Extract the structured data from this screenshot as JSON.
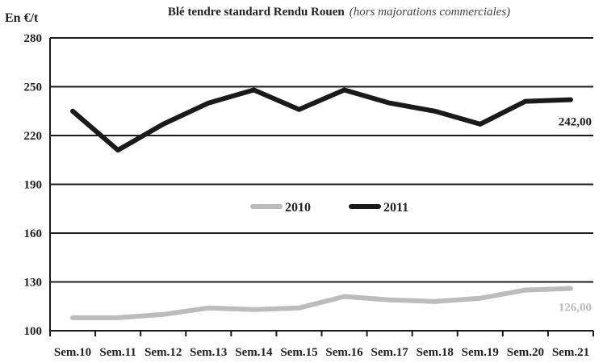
{
  "chart_data": {
    "type": "line",
    "title": "Blé tendre standard Rendu Rouen",
    "subtitle": "(hors majorations commerciales)",
    "ylabel": "En €/t",
    "ylim": [
      100,
      280
    ],
    "yticks": [
      100,
      130,
      160,
      190,
      220,
      250,
      280
    ],
    "grid": true,
    "legend_position": "center",
    "categories": [
      "Sem.10",
      "Sem.11",
      "Sem.12",
      "Sem.13",
      "Sem.14",
      "Sem.15",
      "Sem.16",
      "Sem.17",
      "Sem.18",
      "Sem.19",
      "Sem.20",
      "Sem.21"
    ],
    "series": [
      {
        "name": "2010",
        "color": "#bcbcbc",
        "values": [
          108,
          108,
          110,
          114,
          113,
          114,
          121,
          119,
          118,
          120,
          125,
          126
        ],
        "end_label": "126,00"
      },
      {
        "name": "2011",
        "color": "#1a1a1a",
        "values": [
          235,
          211,
          227,
          240,
          248,
          236,
          248,
          240,
          235,
          227,
          241,
          242
        ],
        "end_label": "242,00"
      }
    ]
  }
}
